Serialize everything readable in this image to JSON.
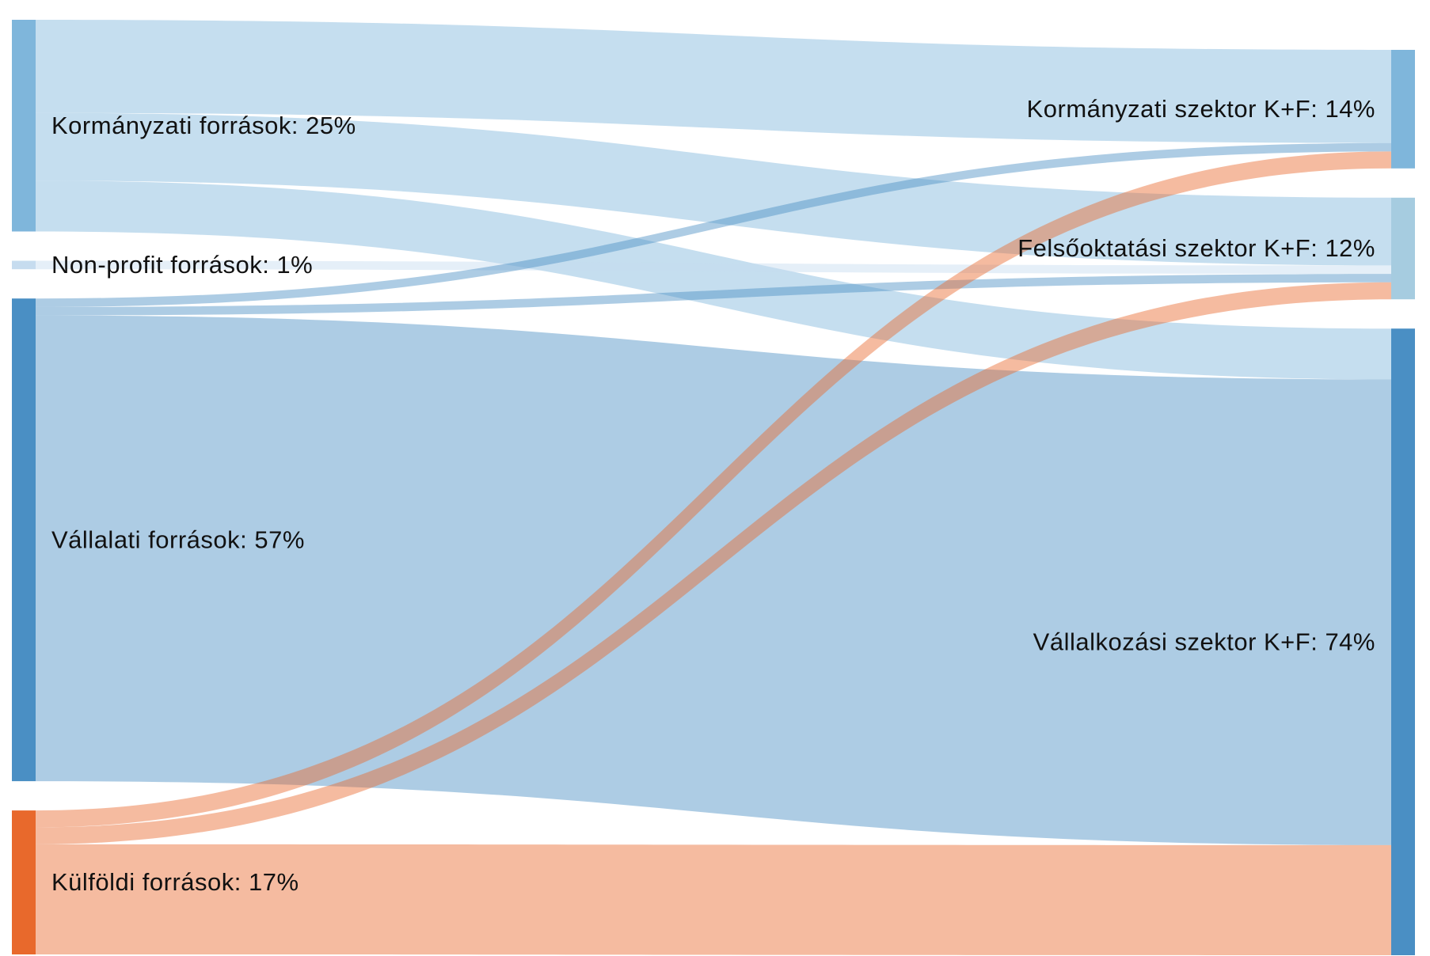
{
  "chart_data": {
    "type": "sankey",
    "nodes": [
      {
        "label": "Kormányzati források: 25%",
        "value": 25,
        "color": "#7fb6db",
        "column": 0
      },
      {
        "label": "Non-profit források: 1%",
        "value": 1,
        "color": "#c6dcef",
        "column": 0
      },
      {
        "label": "Vállalati források: 57%",
        "value": 57,
        "color": "#4a8fc4",
        "column": 0
      },
      {
        "label": "Külföldi források: 17%",
        "value": 17,
        "color": "#e8692c",
        "column": 0
      },
      {
        "label": "Kormányzati szektor K+F: 14%",
        "value": 14,
        "color": "#7fb6db",
        "column": 1
      },
      {
        "label": "Felsőoktatási szektor K+F: 12%",
        "value": 12,
        "color": "#a6cce0",
        "column": 1
      },
      {
        "label": "Vállalkozási szektor K+F: 74%",
        "value": 74,
        "color": "#4a8fc4",
        "column": 1
      }
    ],
    "links": [
      {
        "source": 0,
        "target": 4,
        "value": 11
      },
      {
        "source": 0,
        "target": 5,
        "value": 8
      },
      {
        "source": 0,
        "target": 6,
        "value": 6
      },
      {
        "source": 1,
        "target": 5,
        "value": 1
      },
      {
        "source": 2,
        "target": 4,
        "value": 1
      },
      {
        "source": 2,
        "target": 5,
        "value": 1
      },
      {
        "source": 2,
        "target": 6,
        "value": 55
      },
      {
        "source": 3,
        "target": 4,
        "value": 2
      },
      {
        "source": 3,
        "target": 5,
        "value": 2
      },
      {
        "source": 3,
        "target": 6,
        "value": 13
      }
    ]
  }
}
